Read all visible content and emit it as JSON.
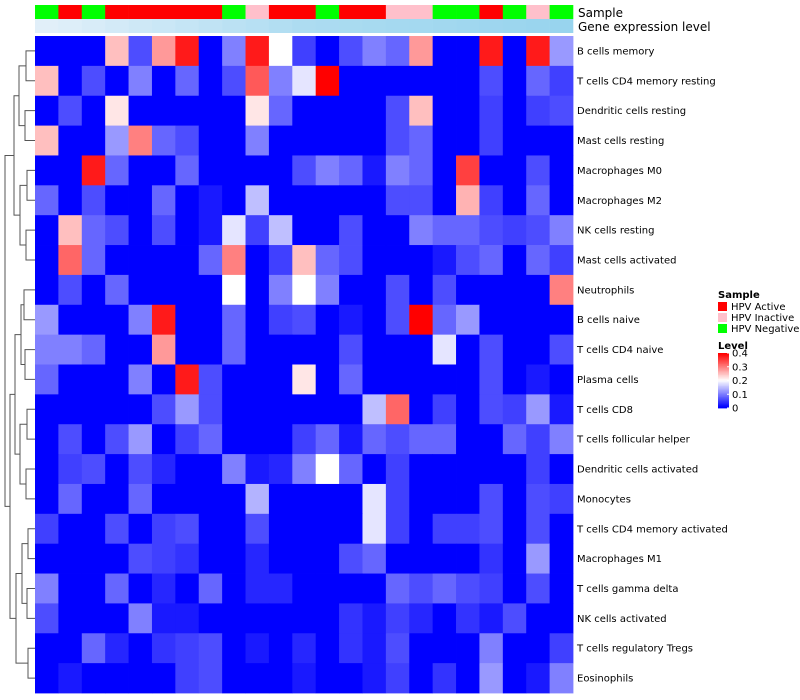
{
  "chart_data": {
    "type": "heatmap",
    "title": "",
    "annotation_labels": {
      "sample": "Sample",
      "gene_level": "Gene expression level"
    },
    "n_columns": 23,
    "sample_annotation": [
      "HPV Negative",
      "HPV Active",
      "HPV Negative",
      "HPV Active",
      "HPV Active",
      "HPV Active",
      "HPV Active",
      "HPV Active",
      "HPV Negative",
      "HPV Inactive",
      "HPV Active",
      "HPV Active",
      "HPV Negative",
      "HPV Active",
      "HPV Active",
      "HPV Inactive",
      "HPV Inactive",
      "HPV Negative",
      "HPV Negative",
      "HPV Active",
      "HPV Negative",
      "HPV Inactive",
      "HPV Negative"
    ],
    "gene_expression_level": [
      0.05,
      0.1,
      0.15,
      0.2,
      0.25,
      0.3,
      0.35,
      0.4,
      0.45,
      0.5,
      0.55,
      0.6,
      0.62,
      0.64,
      0.66,
      0.68,
      0.7,
      0.72,
      0.74,
      0.76,
      0.78,
      0.8,
      0.82
    ],
    "rows": [
      "B cells memory",
      "T cells CD4 memory resting",
      "Dendritic cells resting",
      "Mast cells resting",
      "Macrophages M0",
      "Macrophages M2",
      "NK cells resting",
      "Mast cells activated",
      "Neutrophils",
      "B cells naive",
      "T cells CD4 naive",
      "Plasma cells",
      "T cells CD8",
      "T cells follicular helper",
      "Dendritic cells activated",
      "Monocytes",
      "T cells CD4 memory activated",
      "Macrophages M1",
      "T cells gamma delta",
      "NK cells activated",
      "T cells regulatory  Tregs",
      "Eosinophils"
    ],
    "values": [
      [
        0,
        0,
        0,
        0.25,
        0.06,
        0.28,
        0.38,
        0,
        0.1,
        0.38,
        0.2,
        0.05,
        0,
        0.06,
        0.1,
        0.08,
        0.28,
        0,
        0,
        0.38,
        0,
        0.38,
        0.12
      ],
      [
        0.25,
        0,
        0.06,
        0,
        0.1,
        0,
        0.08,
        0,
        0.06,
        0.33,
        0.1,
        0.18,
        0.4,
        0,
        0,
        0,
        0,
        0,
        0,
        0.06,
        0,
        0.08,
        0.05
      ],
      [
        0,
        0.06,
        0,
        0.22,
        0,
        0,
        0,
        0,
        0,
        0.22,
        0.08,
        0,
        0,
        0,
        0,
        0.06,
        0.25,
        0,
        0,
        0.05,
        0,
        0.05,
        0.06
      ],
      [
        0.25,
        0,
        0,
        0.12,
        0.3,
        0.08,
        0.06,
        0,
        0,
        0.1,
        0,
        0,
        0,
        0,
        0,
        0.06,
        0.08,
        0,
        0,
        0.05,
        0,
        0,
        0
      ],
      [
        0,
        0,
        0.38,
        0.08,
        0,
        0,
        0.08,
        0,
        0,
        0,
        0,
        0.06,
        0.1,
        0.08,
        0.02,
        0.1,
        0.08,
        0,
        0.35,
        0,
        0,
        0.06,
        0
      ],
      [
        0.08,
        0,
        0.06,
        0,
        0,
        0.08,
        0,
        0.02,
        0,
        0.15,
        0,
        0,
        0,
        0,
        0,
        0.06,
        0.06,
        0,
        0.26,
        0.05,
        0,
        0.08,
        0
      ],
      [
        0,
        0.25,
        0.08,
        0.06,
        0,
        0.06,
        0,
        0.02,
        0.18,
        0.05,
        0.15,
        0,
        0,
        0.06,
        0,
        0,
        0.1,
        0.08,
        0.08,
        0.06,
        0.05,
        0.06,
        0.1
      ],
      [
        0,
        0.32,
        0.08,
        0,
        0,
        0,
        0,
        0.08,
        0.3,
        0,
        0.05,
        0.25,
        0.08,
        0.06,
        0,
        0,
        0,
        0.02,
        0.06,
        0.08,
        0,
        0.08,
        0.05
      ],
      [
        0,
        0.06,
        0,
        0.08,
        0,
        0,
        0,
        0,
        0.2,
        0,
        0.1,
        0.2,
        0.1,
        0,
        0,
        0.06,
        0,
        0.06,
        0,
        0,
        0,
        0,
        0.3
      ],
      [
        0.12,
        0,
        0,
        0,
        0.1,
        0.38,
        0,
        0,
        0.08,
        0,
        0.05,
        0.06,
        0,
        0.02,
        0,
        0.06,
        0.4,
        0.08,
        0.12,
        0,
        0,
        0,
        0
      ],
      [
        0.1,
        0.1,
        0.08,
        0,
        0,
        0.28,
        0,
        0,
        0.08,
        0,
        0,
        0,
        0,
        0.06,
        0,
        0,
        0,
        0.18,
        0,
        0.06,
        0,
        0,
        0.06
      ],
      [
        0.08,
        0,
        0,
        0,
        0.1,
        0,
        0.38,
        0.06,
        0,
        0,
        0,
        0.22,
        0,
        0.08,
        0,
        0,
        0,
        0,
        0,
        0.06,
        0,
        0.02,
        0
      ],
      [
        0,
        0,
        0,
        0,
        0,
        0.06,
        0.12,
        0.06,
        0,
        0,
        0,
        0,
        0,
        0,
        0.15,
        0.32,
        0,
        0.05,
        0,
        0.06,
        0.05,
        0.12,
        0.02
      ],
      [
        0,
        0.06,
        0,
        0.06,
        0.12,
        0,
        0.05,
        0.08,
        0,
        0,
        0,
        0.05,
        0.08,
        0.02,
        0.08,
        0.06,
        0.08,
        0.08,
        0,
        0,
        0.08,
        0.05,
        0.1
      ],
      [
        0,
        0.05,
        0.06,
        0,
        0.06,
        0.03,
        0,
        0,
        0.1,
        0.02,
        0.03,
        0.1,
        0.2,
        0.08,
        0,
        0.05,
        0,
        0,
        0,
        0,
        0,
        0.05,
        0
      ],
      [
        0,
        0.08,
        0,
        0,
        0.08,
        0,
        0,
        0,
        0,
        0.14,
        0,
        0,
        0,
        0,
        0.18,
        0.05,
        0,
        0,
        0,
        0.06,
        0,
        0.06,
        0.05
      ],
      [
        0.05,
        0,
        0,
        0.06,
        0,
        0.05,
        0.06,
        0,
        0,
        0.06,
        0,
        0,
        0,
        0,
        0.18,
        0.05,
        0,
        0.05,
        0.05,
        0.06,
        0,
        0.06,
        0
      ],
      [
        0,
        0,
        0,
        0,
        0.06,
        0.05,
        0.04,
        0,
        0,
        0.03,
        0,
        0,
        0,
        0.06,
        0.08,
        0,
        0,
        0,
        0,
        0.04,
        0,
        0.12,
        0
      ],
      [
        0.1,
        0,
        0,
        0.08,
        0,
        0.03,
        0,
        0.08,
        0,
        0.03,
        0.03,
        0,
        0,
        0,
        0,
        0.08,
        0.06,
        0.08,
        0.06,
        0.05,
        0,
        0.06,
        0
      ],
      [
        0.06,
        0,
        0,
        0,
        0.1,
        0.02,
        0.02,
        0,
        0,
        0,
        0,
        0,
        0,
        0.04,
        0.02,
        0.05,
        0.03,
        0,
        0.04,
        0.02,
        0.06,
        0,
        0
      ],
      [
        0,
        0,
        0.08,
        0.03,
        0,
        0.04,
        0.05,
        0.06,
        0,
        0.02,
        0,
        0.03,
        0,
        0.04,
        0.02,
        0.06,
        0,
        0,
        0,
        0.1,
        0,
        0,
        0.05
      ],
      [
        0,
        0.02,
        0,
        0,
        0,
        0,
        0.05,
        0.06,
        0,
        0,
        0,
        0.02,
        0,
        0,
        0.02,
        0.05,
        0,
        0.04,
        0,
        0.12,
        0,
        0.02,
        0.1
      ]
    ],
    "color_scale": {
      "min": 0,
      "max": 0.4,
      "low": "#0000ff",
      "mid": "#ffffff",
      "high": "#ff0000",
      "mid_value": 0.2
    },
    "level_bar_colors": {
      "low": "#e6f1fa",
      "high": "#87ceeb"
    },
    "legends": {
      "sample": {
        "title": "Sample",
        "items": [
          {
            "label": "HPV Active",
            "color": "#ff0000"
          },
          {
            "label": "HPV Inactive",
            "color": "#ffc0cb"
          },
          {
            "label": "HPV Negative",
            "color": "#00ff00"
          }
        ]
      },
      "level": {
        "title": "Level",
        "ticks": [
          "0.4",
          "0.3",
          "0.2",
          "0.1",
          "0"
        ],
        "tick_values": [
          0.4,
          0.3,
          0.2,
          0.1,
          0
        ]
      }
    }
  }
}
